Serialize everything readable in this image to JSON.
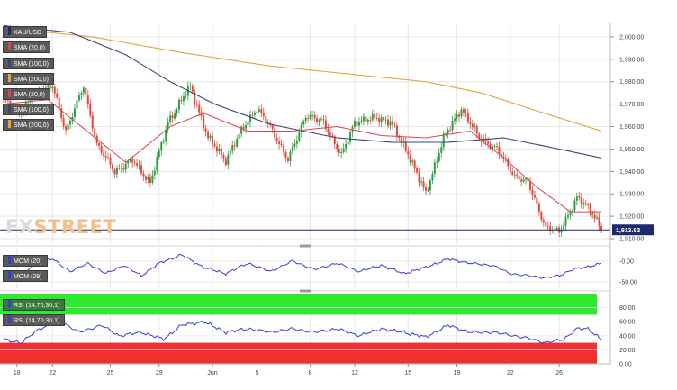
{
  "colors": {
    "bull": "#2e9e45",
    "bear": "#e5483a",
    "sma20": "#d64550",
    "sma100": "#3d4475",
    "sma200": "#e7a23d",
    "mom": "#2f40d6",
    "rsi": "#2f40d6",
    "rsi_overbought": "#2fe82f",
    "rsi_oversold": "#f03030",
    "price_line": "#1d2a6b",
    "grid": "#e7e7e7"
  },
  "legend": {
    "symbol": "XAU/USD",
    "sma1": "SMA (20,0)",
    "sma2": "SMA (100,0)",
    "sma3": "SMA (200,0)",
    "sma4": "SMA (20,0)",
    "sma5": "SMA (100,0)",
    "sma6": "SMA (200,0)",
    "mom1": "MOM (20)",
    "mom2": "MOM (29)",
    "rsi1": "RSI (14,70,30,1)",
    "rsi2": "RSI (14,70,30,1)"
  },
  "logo": {
    "fx": "FX",
    "street": "STREET",
    "icon": "fxstreet-logo-icon"
  },
  "chart_data": {
    "type": "line",
    "price_panel": {
      "ylim": [
        1908,
        2006
      ],
      "y_ticks": [
        1910,
        1920,
        1930,
        1940,
        1950,
        1960,
        1970,
        1980,
        1990,
        2000
      ],
      "y_tick_labels": [
        "1,910.00",
        "1,920.00",
        "1,930.00",
        "1,940.00",
        "1,950.00",
        "1,960.00",
        "1,970.00",
        "1,980.00",
        "1,990.00",
        "2,000.00"
      ],
      "last_price": 1913.93,
      "last_price_label": "1,913.93",
      "close_anchors": [
        [
          0,
          1972
        ],
        [
          8,
          1966
        ],
        [
          14,
          1975
        ],
        [
          22,
          1978
        ],
        [
          28,
          1958
        ],
        [
          36,
          1978
        ],
        [
          42,
          1952
        ],
        [
          50,
          1940
        ],
        [
          58,
          1945
        ],
        [
          66,
          1935
        ],
        [
          74,
          1962
        ],
        [
          84,
          1978
        ],
        [
          92,
          1955
        ],
        [
          100,
          1945
        ],
        [
          108,
          1960
        ],
        [
          114,
          1968
        ],
        [
          120,
          1960
        ],
        [
          128,
          1945
        ],
        [
          136,
          1965
        ],
        [
          144,
          1962
        ],
        [
          152,
          1947
        ],
        [
          158,
          1962
        ],
        [
          168,
          1964
        ],
        [
          174,
          1962
        ],
        [
          182,
          1948
        ],
        [
          190,
          1930
        ],
        [
          198,
          1955
        ],
        [
          206,
          1968
        ],
        [
          214,
          1955
        ],
        [
          222,
          1950
        ],
        [
          230,
          1938
        ],
        [
          236,
          1935
        ],
        [
          244,
          1915
        ],
        [
          250,
          1913
        ],
        [
          258,
          1928
        ],
        [
          262,
          1925
        ],
        [
          266,
          1920
        ],
        [
          269,
          1913.93
        ]
      ],
      "sma20_anchors": [
        [
          0,
          1970
        ],
        [
          20,
          1972
        ],
        [
          40,
          1956
        ],
        [
          55,
          1944
        ],
        [
          75,
          1960
        ],
        [
          90,
          1966
        ],
        [
          110,
          1958
        ],
        [
          130,
          1958
        ],
        [
          150,
          1960
        ],
        [
          170,
          1956
        ],
        [
          190,
          1955
        ],
        [
          210,
          1958
        ],
        [
          225,
          1946
        ],
        [
          240,
          1933
        ],
        [
          255,
          1922
        ],
        [
          269,
          1922
        ]
      ],
      "sma100_anchors": [
        [
          0,
          2005
        ],
        [
          30,
          2002
        ],
        [
          55,
          1992
        ],
        [
          75,
          1980
        ],
        [
          95,
          1970
        ],
        [
          120,
          1961
        ],
        [
          150,
          1955
        ],
        [
          175,
          1953
        ],
        [
          200,
          1953
        ],
        [
          225,
          1955
        ],
        [
          245,
          1951
        ],
        [
          269,
          1946
        ]
      ],
      "sma200_anchors": [
        [
          0,
          2004
        ],
        [
          40,
          2000
        ],
        [
          80,
          1993
        ],
        [
          120,
          1987
        ],
        [
          160,
          1983
        ],
        [
          190,
          1980
        ],
        [
          215,
          1975
        ],
        [
          240,
          1967
        ],
        [
          269,
          1958
        ]
      ]
    },
    "mom_panel": {
      "ylim": [
        -65,
        30
      ],
      "y_ticks": [
        0,
        -50
      ],
      "y_tick_labels": [
        "-0.00",
        "-50.00"
      ],
      "anchors": [
        [
          0,
          -40
        ],
        [
          6,
          -50
        ],
        [
          14,
          -5
        ],
        [
          22,
          5
        ],
        [
          30,
          -25
        ],
        [
          38,
          -5
        ],
        [
          46,
          -30
        ],
        [
          54,
          -10
        ],
        [
          62,
          -35
        ],
        [
          70,
          -5
        ],
        [
          80,
          15
        ],
        [
          90,
          -15
        ],
        [
          100,
          -30
        ],
        [
          110,
          -5
        ],
        [
          120,
          -25
        ],
        [
          130,
          0
        ],
        [
          140,
          -20
        ],
        [
          150,
          -5
        ],
        [
          160,
          -25
        ],
        [
          170,
          -10
        ],
        [
          180,
          -30
        ],
        [
          190,
          -15
        ],
        [
          200,
          5
        ],
        [
          210,
          -5
        ],
        [
          220,
          -10
        ],
        [
          228,
          -30
        ],
        [
          236,
          -35
        ],
        [
          244,
          -40
        ],
        [
          250,
          -35
        ],
        [
          256,
          -20
        ],
        [
          262,
          -15
        ],
        [
          269,
          -5
        ]
      ]
    },
    "rsi_panel": {
      "ylim": [
        0,
        100
      ],
      "y_ticks": [
        0,
        20,
        40,
        60,
        80
      ],
      "y_tick_labels": [
        "0.00",
        "20.00",
        "40.00",
        "60.00",
        "80.00"
      ],
      "overbought": 70,
      "oversold": 30,
      "anchors": [
        [
          0,
          35
        ],
        [
          8,
          30
        ],
        [
          16,
          50
        ],
        [
          26,
          60
        ],
        [
          34,
          45
        ],
        [
          44,
          55
        ],
        [
          52,
          40
        ],
        [
          62,
          45
        ],
        [
          72,
          35
        ],
        [
          80,
          55
        ],
        [
          90,
          60
        ],
        [
          100,
          45
        ],
        [
          110,
          50
        ],
        [
          120,
          45
        ],
        [
          130,
          50
        ],
        [
          140,
          45
        ],
        [
          150,
          50
        ],
        [
          160,
          40
        ],
        [
          170,
          50
        ],
        [
          180,
          45
        ],
        [
          190,
          38
        ],
        [
          200,
          55
        ],
        [
          210,
          45
        ],
        [
          220,
          45
        ],
        [
          230,
          40
        ],
        [
          238,
          35
        ],
        [
          244,
          30
        ],
        [
          252,
          35
        ],
        [
          258,
          50
        ],
        [
          263,
          50
        ],
        [
          269,
          35
        ]
      ]
    },
    "x_ticks": [
      [
        6,
        "18"
      ],
      [
        22,
        "22"
      ],
      [
        48,
        "25"
      ],
      [
        70,
        "29"
      ],
      [
        94,
        "Jun"
      ],
      [
        114,
        "5"
      ],
      [
        138,
        "8"
      ],
      [
        158,
        "12"
      ],
      [
        182,
        "15"
      ],
      [
        204,
        "19"
      ],
      [
        228,
        "22"
      ],
      [
        250,
        "26"
      ]
    ]
  }
}
